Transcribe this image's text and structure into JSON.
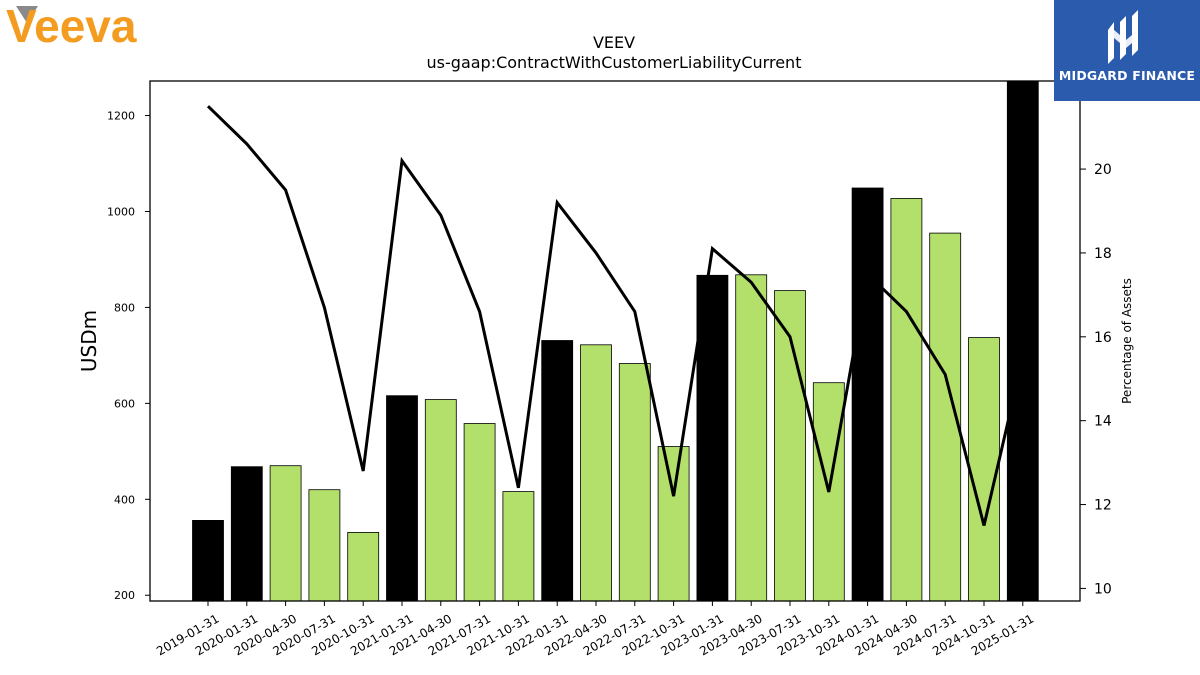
{
  "logos": {
    "left": {
      "text": "Veeva",
      "color": "#f39c1f"
    },
    "right": {
      "text": "MIDGARD FINANCE",
      "bg": "#2b5bad"
    }
  },
  "chart_data": {
    "type": "bar",
    "title": "VEEV",
    "subtitle": "us-gaap:ContractWithCustomerLiabilityCurrent",
    "ylabel": "USDm",
    "y2label": "Percentage of Assets",
    "ylim": [
      188,
      1272
    ],
    "y2lim": [
      9.7,
      22.1
    ],
    "yticks": [
      200,
      400,
      600,
      800,
      1000,
      1200
    ],
    "y2ticks": [
      10,
      12,
      14,
      16,
      18,
      20
    ],
    "categories": [
      "2019-01-31",
      "2020-01-31",
      "2020-04-30",
      "2020-07-31",
      "2020-10-31",
      "2021-01-31",
      "2021-04-30",
      "2021-07-31",
      "2021-10-31",
      "2022-01-31",
      "2022-04-30",
      "2022-07-31",
      "2022-10-31",
      "2023-01-31",
      "2023-04-30",
      "2023-07-31",
      "2023-10-31",
      "2024-01-31",
      "2024-04-30",
      "2024-07-31",
      "2024-10-31",
      "2025-01-31"
    ],
    "series": [
      {
        "type": "bar",
        "axis": "left",
        "values": [
          356,
          468,
          470,
          420,
          331,
          616,
          608,
          558,
          416,
          731,
          722,
          683,
          510,
          867,
          868,
          835,
          643,
          1049,
          1027,
          955,
          737,
          1272
        ],
        "annual_flags": [
          true,
          true,
          false,
          false,
          false,
          true,
          false,
          false,
          false,
          true,
          false,
          false,
          false,
          true,
          false,
          false,
          false,
          true,
          false,
          false,
          false,
          true
        ]
      },
      {
        "type": "line",
        "axis": "right",
        "values": [
          21.5,
          20.6,
          19.5,
          16.7,
          12.8,
          20.2,
          18.9,
          16.6,
          12.4,
          19.2,
          18.0,
          16.6,
          12.2,
          18.1,
          17.3,
          16.0,
          12.3,
          17.5,
          16.6,
          15.1,
          11.5,
          15.5
        ]
      }
    ],
    "colors": {
      "annual": "#000000",
      "quarterly": "#b3df6b",
      "line": "#000000"
    }
  }
}
